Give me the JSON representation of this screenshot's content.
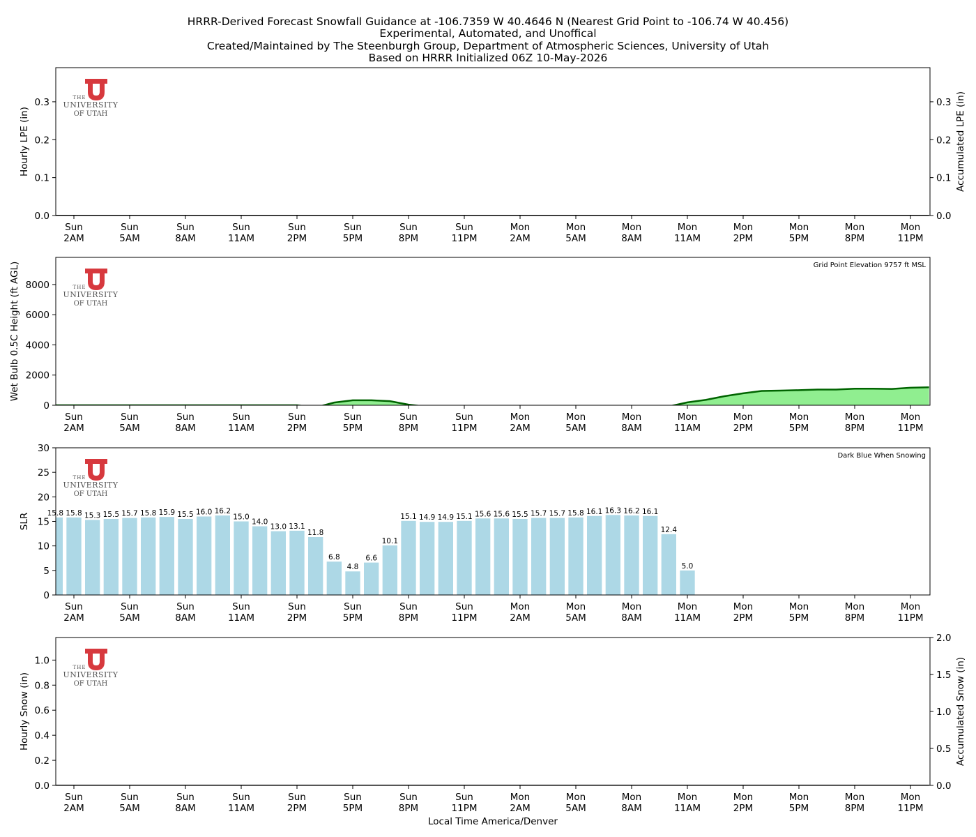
{
  "title_lines": [
    "HRRR-Derived Forecast Snowfall Guidance at -106.7359 W 40.4646 N (Nearest Grid Point to -106.74 W 40.456)",
    "Experimental, Automated, and Unoffical",
    "Created/Maintained by The Steenburgh Group, Department of Atmospheric Sciences, University of Utah",
    "Based on HRRR Initialized 06Z 10-May-2026"
  ],
  "logo": {
    "line1": "THE",
    "line2": "UNIVERSITY",
    "line3": "OF UTAH",
    "color": "#d7393e"
  },
  "time_axis": {
    "ticks": [
      {
        "day": "Sun",
        "time": "2AM"
      },
      {
        "day": "Sun",
        "time": "5AM"
      },
      {
        "day": "Sun",
        "time": "8AM"
      },
      {
        "day": "Sun",
        "time": "11AM"
      },
      {
        "day": "Sun",
        "time": "2PM"
      },
      {
        "day": "Sun",
        "time": "5PM"
      },
      {
        "day": "Sun",
        "time": "8PM"
      },
      {
        "day": "Sun",
        "time": "11PM"
      },
      {
        "day": "Mon",
        "time": "2AM"
      },
      {
        "day": "Mon",
        "time": "5AM"
      },
      {
        "day": "Mon",
        "time": "8AM"
      },
      {
        "day": "Mon",
        "time": "11AM"
      },
      {
        "day": "Mon",
        "time": "2PM"
      },
      {
        "day": "Mon",
        "time": "5PM"
      },
      {
        "day": "Mon",
        "time": "8PM"
      },
      {
        "day": "Mon",
        "time": "11PM"
      }
    ],
    "xlabel": "Local Time America/Denver"
  },
  "chart_data": [
    {
      "type": "bar",
      "name": "lpe",
      "ylabel": "Hourly LPE (in)",
      "ylabel_right": "Accumulated LPE (in)",
      "ylim": [
        0,
        0.39
      ],
      "yticks": [
        "0.0",
        "0.1",
        "0.2",
        "0.3"
      ],
      "ylim_right": [
        0,
        0.39
      ],
      "yticks_right": [
        "0.0",
        "0.1",
        "0.2",
        "0.3"
      ],
      "hours_from_sun_2am": [
        -1,
        0,
        1,
        2,
        3,
        4,
        5,
        6,
        7,
        8,
        9,
        10,
        11,
        12,
        13,
        14,
        15,
        16,
        17,
        18,
        19,
        20,
        21,
        22,
        23,
        24,
        25,
        26,
        27,
        28,
        29,
        30,
        31,
        32,
        33,
        34,
        35,
        36,
        37,
        38,
        39,
        40,
        41,
        42,
        43,
        44,
        45,
        46
      ],
      "values": [
        0,
        0,
        0,
        0,
        0,
        0,
        0,
        0,
        0,
        0,
        0,
        0,
        0,
        0,
        0,
        0,
        0,
        0,
        0,
        0,
        0,
        0,
        0,
        0,
        0,
        0,
        0,
        0,
        0,
        0,
        0,
        0,
        0,
        0,
        0,
        0,
        0,
        0,
        0,
        0,
        0,
        0,
        0,
        0,
        0,
        0,
        0,
        0
      ],
      "accumulated": [
        0,
        0,
        0,
        0,
        0,
        0,
        0,
        0,
        0,
        0,
        0,
        0,
        0,
        0,
        0,
        0,
        0,
        0,
        0,
        0,
        0,
        0,
        0,
        0,
        0,
        0,
        0,
        0,
        0,
        0,
        0,
        0,
        0,
        0,
        0,
        0,
        0,
        0,
        0,
        0,
        0,
        0,
        0,
        0,
        0,
        0,
        0,
        0
      ],
      "grid": false
    },
    {
      "type": "area",
      "name": "wet_bulb",
      "ylabel": "Wet Bulb 0.5C Height (ft AGL)",
      "note": "Grid Point Elevation 9757 ft MSL",
      "ylim": [
        0,
        9800
      ],
      "yticks": [
        "0",
        "2000",
        "4000",
        "6000",
        "8000"
      ],
      "hours_from_sun_2am": [
        -1,
        0,
        1,
        2,
        3,
        4,
        5,
        6,
        7,
        8,
        9,
        10,
        11,
        12,
        13,
        14,
        15,
        16,
        17,
        18,
        19,
        20,
        21,
        22,
        23,
        24,
        25,
        26,
        27,
        28,
        29,
        30,
        31,
        32,
        33,
        34,
        35,
        36,
        37,
        38,
        39,
        40,
        41,
        42,
        43,
        44,
        45,
        46
      ],
      "values": [
        0,
        0,
        0,
        0,
        0,
        0,
        0,
        0,
        0,
        0,
        0,
        0,
        0,
        0,
        -150,
        180,
        330,
        330,
        270,
        40,
        -100,
        -100,
        -100,
        -100,
        -100,
        -100,
        -100,
        -100,
        -100,
        -100,
        -100,
        -100,
        -100,
        -80,
        190,
        360,
        600,
        790,
        950,
        970,
        1000,
        1040,
        1040,
        1100,
        1100,
        1080,
        1160,
        1190
      ],
      "fill_color": "#90ee90",
      "line_color": "#006400",
      "grid": false
    },
    {
      "type": "bar",
      "name": "slr",
      "ylabel": "SLR",
      "note": "Dark Blue When Snowing",
      "ylim": [
        0,
        30
      ],
      "yticks": [
        "0",
        "5",
        "10",
        "15",
        "20",
        "25",
        "30"
      ],
      "hours_from_sun_2am": [
        -1,
        0,
        1,
        2,
        3,
        4,
        5,
        6,
        7,
        8,
        9,
        10,
        11,
        12,
        13,
        14,
        15,
        16,
        17,
        18,
        19,
        20,
        21,
        22,
        23,
        24,
        25,
        26,
        27,
        28,
        29,
        30,
        31,
        32,
        33
      ],
      "values": [
        15.8,
        15.8,
        15.3,
        15.5,
        15.7,
        15.8,
        15.9,
        15.5,
        16.0,
        16.2,
        15.0,
        14.0,
        13.0,
        13.1,
        11.8,
        6.8,
        4.8,
        6.6,
        10.1,
        15.1,
        14.9,
        14.9,
        15.1,
        15.6,
        15.6,
        15.5,
        15.7,
        15.7,
        15.8,
        16.1,
        16.3,
        16.2,
        16.1,
        12.4,
        5.0
      ],
      "labels": [
        "15.8",
        "15.8",
        "15.3",
        "15.5",
        "15.7",
        "15.8",
        "15.9",
        "15.5",
        "16.0",
        "16.2",
        "15.0",
        "14.0",
        "13.0",
        "13.1",
        "11.8",
        "6.8",
        "4.8",
        "6.6",
        "10.1",
        "15.1",
        "14.9",
        "14.9",
        "15.1",
        "15.6",
        "15.6",
        "15.5",
        "15.7",
        "15.7",
        "15.8",
        "16.1",
        "16.3",
        "16.2",
        "16.1",
        "12.4",
        "5.0"
      ],
      "bar_color": "#add8e6",
      "snowing_color": "#00008b",
      "grid": false
    },
    {
      "type": "bar",
      "name": "snow",
      "ylabel": "Hourly Snow (in)",
      "ylabel_right": "Accumulated Snow (in)",
      "ylim": [
        0,
        1.18
      ],
      "yticks": [
        "0.0",
        "0.2",
        "0.4",
        "0.6",
        "0.8",
        "1.0"
      ],
      "ylim_right": [
        0,
        2.0
      ],
      "yticks_right": [
        "0.0",
        "0.5",
        "1.0",
        "1.5",
        "2.0"
      ],
      "hours_from_sun_2am": [
        -1,
        0,
        1,
        2,
        3,
        4,
        5,
        6,
        7,
        8,
        9,
        10,
        11,
        12,
        13,
        14,
        15,
        16,
        17,
        18,
        19,
        20,
        21,
        22,
        23,
        24,
        25,
        26,
        27,
        28,
        29,
        30,
        31,
        32,
        33,
        34,
        35,
        36,
        37,
        38,
        39,
        40,
        41,
        42,
        43,
        44,
        45,
        46
      ],
      "values": [
        0,
        0,
        0,
        0,
        0,
        0,
        0,
        0,
        0,
        0,
        0,
        0,
        0,
        0,
        0,
        0,
        0,
        0,
        0,
        0,
        0,
        0,
        0,
        0,
        0,
        0,
        0,
        0,
        0,
        0,
        0,
        0,
        0,
        0,
        0,
        0,
        0,
        0,
        0,
        0,
        0,
        0,
        0,
        0,
        0,
        0,
        0,
        0
      ],
      "accumulated": [
        0,
        0,
        0,
        0,
        0,
        0,
        0,
        0,
        0,
        0,
        0,
        0,
        0,
        0,
        0,
        0,
        0,
        0,
        0,
        0,
        0,
        0,
        0,
        0,
        0,
        0,
        0,
        0,
        0,
        0,
        0,
        0,
        0,
        0,
        0,
        0,
        0,
        0,
        0,
        0,
        0,
        0,
        0,
        0,
        0,
        0,
        0,
        0
      ],
      "grid": false
    }
  ]
}
